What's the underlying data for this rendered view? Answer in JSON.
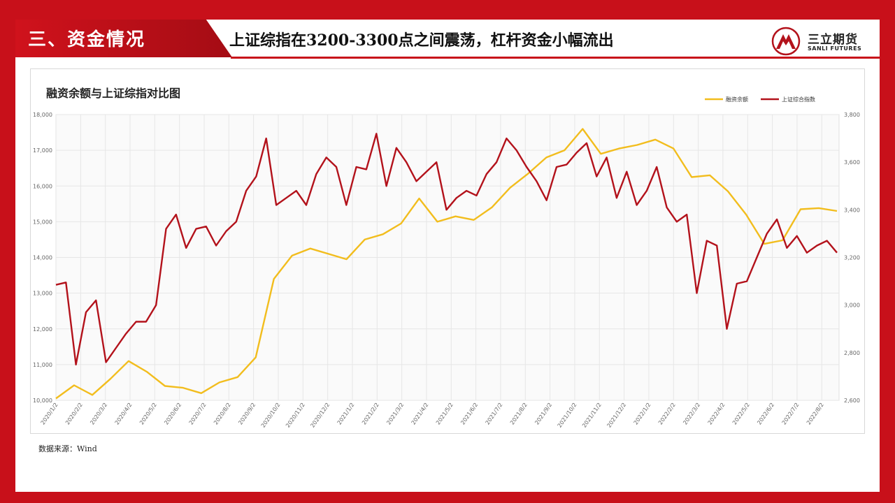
{
  "header": {
    "section_title": "三、资金情况",
    "headline": "上证综指在3200-3300点之间震荡，杠杆资金小幅流出"
  },
  "logo": {
    "name_cn": "三立期货",
    "name_en": "SANLI FUTURES"
  },
  "source": "数据来源：Wind",
  "colors": {
    "page_red": "#c8101a",
    "margin_series": "#f2bd1d",
    "index_series": "#b3121b"
  },
  "chart_data": {
    "type": "line",
    "title": "融资余额与上证综指对比图",
    "legend_position": "top-right",
    "grid": true,
    "x_tick_labels": [
      "2020/1/2",
      "2020/2/2",
      "2020/3/2",
      "2020/4/2",
      "2020/5/2",
      "2020/6/2",
      "2020/7/2",
      "2020/8/2",
      "2020/9/2",
      "2020/10/2",
      "2020/11/2",
      "2020/12/2",
      "2021/1/2",
      "2021/2/2",
      "2021/3/2",
      "2021/4/2",
      "2021/5/2",
      "2021/6/2",
      "2021/7/2",
      "2021/8/2",
      "2021/9/2",
      "2021/10/2",
      "2021/11/2",
      "2021/12/2",
      "2022/1/2",
      "2022/2/2",
      "2022/3/2",
      "2022/4/2",
      "2022/5/2",
      "2022/6/2",
      "2022/7/2",
      "2022/8/2"
    ],
    "y_left": {
      "ticks": [
        "10,000",
        "11,000",
        "12,000",
        "13,000",
        "14,000",
        "15,000",
        "16,000",
        "17,000",
        "18,000"
      ],
      "min": 10000,
      "max": 18000
    },
    "y_right": {
      "ticks": [
        "2,600",
        "2,800",
        "3,000",
        "3,200",
        "3,400",
        "3,600",
        "3,800"
      ],
      "min": 2600,
      "max": 3800
    },
    "series": [
      {
        "name": "融资余额",
        "axis": "left",
        "values": [
          10050,
          10420,
          10150,
          10600,
          11100,
          10800,
          10400,
          10350,
          10200,
          10500,
          10650,
          11200,
          13400,
          14050,
          14250,
          14100,
          13950,
          14500,
          14650,
          14950,
          15650,
          15000,
          15150,
          15050,
          15400,
          15950,
          16350,
          16800,
          17000,
          17600,
          16900,
          17050,
          17150,
          17300,
          17050,
          16250,
          16300,
          15850,
          15200,
          14380,
          14480,
          15350,
          15380,
          15300
        ]
      },
      {
        "name": "上证综合指数",
        "axis": "right",
        "values": [
          3085,
          3095,
          2750,
          2970,
          3020,
          2760,
          2820,
          2880,
          2930,
          2930,
          3000,
          3320,
          3380,
          3240,
          3320,
          3330,
          3250,
          3310,
          3350,
          3480,
          3540,
          3700,
          3420,
          3450,
          3480,
          3420,
          3550,
          3620,
          3580,
          3420,
          3580,
          3570,
          3720,
          3500,
          3660,
          3600,
          3520,
          3560,
          3600,
          3400,
          3450,
          3480,
          3460,
          3550,
          3600,
          3700,
          3650,
          3580,
          3520,
          3440,
          3580,
          3590,
          3640,
          3680,
          3540,
          3620,
          3450,
          3560,
          3420,
          3480,
          3580,
          3410,
          3350,
          3380,
          3050,
          3270,
          3250,
          2900,
          3090,
          3100,
          3200,
          3300,
          3360,
          3240,
          3290,
          3220,
          3250,
          3270,
          3220
        ]
      }
    ]
  }
}
